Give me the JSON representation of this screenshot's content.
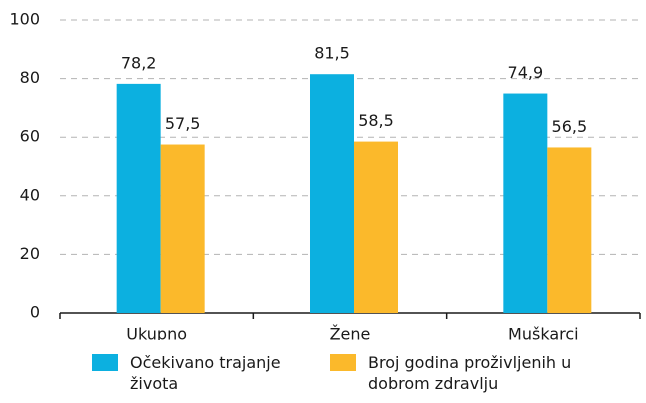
{
  "chart_data": {
    "type": "bar",
    "categories": [
      "Ukupno",
      "Žene",
      "Muškarci"
    ],
    "series": [
      {
        "name": "Očekivano trajanje života",
        "color": "#0cb0e0",
        "values": [
          78.2,
          81.5,
          74.9
        ],
        "value_labels": [
          "78,2",
          "81,5",
          "74,9"
        ]
      },
      {
        "name": "Broj godina proživljenih u dobrom zdravlju",
        "color": "#fbb92b",
        "values": [
          57.5,
          58.5,
          56.5
        ],
        "value_labels": [
          "57,5",
          "58,5",
          "56,5"
        ]
      }
    ],
    "ylim": [
      0,
      100
    ],
    "yticks": [
      0,
      20,
      40,
      60,
      80,
      100
    ],
    "grid": true
  }
}
